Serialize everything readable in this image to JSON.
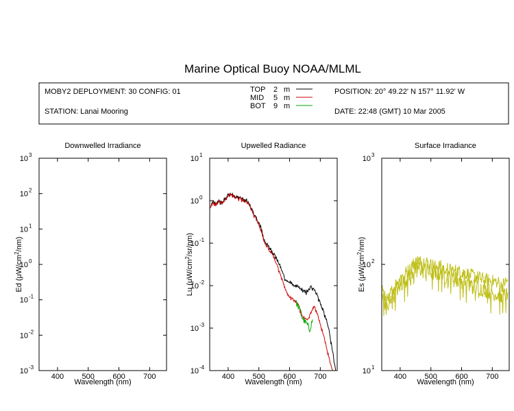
{
  "title": "Marine Optical Buoy NOAA/MLML",
  "info": {
    "deployment": "MOBY2 DEPLOYMENT: 30 CONFIG: 01",
    "station": "STATION: Lanai Mooring",
    "position": "POSITION: 20° 49.22' N   157° 11.92' W",
    "date": "DATE: 22:48 (GMT) 10 Mar 2005"
  },
  "legend": [
    {
      "label": "TOP",
      "depth": "2",
      "unit": "m",
      "color": "#000000"
    },
    {
      "label": "MID",
      "depth": "5",
      "unit": "m",
      "color": "#cc0000"
    },
    {
      "label": "BOT",
      "depth": "9",
      "unit": "m",
      "color": "#00aa00"
    }
  ],
  "chart_data": [
    {
      "type": "line",
      "title": "Downwelled Irradiance",
      "xlabel": "Wavelength (nm)",
      "ylabel_prefix": "Ed  (",
      "ylabel_suffix": ")",
      "unit": {
        "mu": "μ",
        "a": "W/cm",
        "sup": "2",
        "b": "/nm"
      },
      "xlim": [
        340,
        755
      ],
      "ylim": [
        0.001,
        1000
      ],
      "yscale": "log",
      "x_ticks": [
        400,
        500,
        600,
        700
      ],
      "y_ticks": [
        {
          "value": 0.001,
          "base": "10",
          "exp": "-3"
        },
        {
          "value": 0.01,
          "base": "10",
          "exp": "-2"
        },
        {
          "value": 0.1,
          "base": "10",
          "exp": "-1"
        },
        {
          "value": 1,
          "base": "10",
          "exp": "0"
        },
        {
          "value": 10,
          "base": "10",
          "exp": "1"
        },
        {
          "value": 100,
          "base": "10",
          "exp": "2"
        },
        {
          "value": 1000,
          "base": "10",
          "exp": "3"
        }
      ],
      "series": []
    },
    {
      "type": "line",
      "title": "Upwelled Radiance",
      "xlabel": "Wavelength (nm)",
      "ylabel_prefix": "Lu  (",
      "ylabel_suffix": ")",
      "unit": {
        "mu": "μ",
        "a": "W/cm",
        "sup": "2",
        "b": "/sr/nm"
      },
      "xlim": [
        340,
        755
      ],
      "ylim": [
        0.0001,
        10
      ],
      "yscale": "log",
      "x_ticks": [
        400,
        500,
        600,
        700
      ],
      "y_ticks": [
        {
          "value": 0.0001,
          "base": "10",
          "exp": "-4"
        },
        {
          "value": 0.001,
          "base": "10",
          "exp": "-3"
        },
        {
          "value": 0.01,
          "base": "10",
          "exp": "-2"
        },
        {
          "value": 0.1,
          "base": "10",
          "exp": "-1"
        },
        {
          "value": 1,
          "base": "10",
          "exp": "0"
        },
        {
          "value": 10,
          "base": "10",
          "exp": "1"
        }
      ],
      "series": [
        {
          "color": "#000000",
          "noise": 0.08,
          "x": [
            342,
            350,
            360,
            370,
            380,
            390,
            400,
            410,
            420,
            430,
            440,
            450,
            460,
            470,
            480,
            490,
            500,
            510,
            515,
            520,
            530,
            540,
            550,
            560,
            570,
            580,
            590,
            600,
            610,
            620,
            630,
            640,
            650,
            660,
            670,
            680,
            690,
            700,
            710,
            720,
            730,
            740,
            745,
            750
          ],
          "y": [
            0.7,
            0.95,
            0.85,
            1.0,
            0.9,
            1.1,
            1.4,
            1.45,
            1.3,
            1.2,
            1.2,
            1.05,
            1.0,
            0.8,
            0.55,
            0.4,
            0.3,
            0.2,
            0.13,
            0.11,
            0.085,
            0.07,
            0.055,
            0.04,
            0.028,
            0.018,
            0.013,
            0.012,
            0.011,
            0.01,
            0.009,
            0.008,
            0.007,
            0.0075,
            0.0095,
            0.0085,
            0.006,
            0.004,
            0.0025,
            0.0015,
            0.0008,
            0.0003,
            0.00015,
            0.0001
          ]
        },
        {
          "color": "#cc0000",
          "noise": 0.06,
          "x": [
            342,
            350,
            360,
            370,
            380,
            390,
            400,
            410,
            420,
            430,
            440,
            450,
            460,
            470,
            480,
            490,
            500,
            510,
            515,
            520,
            530,
            540,
            550,
            560,
            570,
            580,
            590,
            600,
            610,
            620,
            630,
            640,
            650,
            660,
            670,
            680,
            690,
            700,
            710,
            720,
            730,
            740,
            745
          ],
          "y": [
            0.65,
            0.9,
            0.8,
            0.95,
            0.88,
            1.05,
            1.35,
            1.4,
            1.28,
            1.18,
            1.15,
            1.0,
            0.95,
            0.78,
            0.52,
            0.38,
            0.28,
            0.17,
            0.12,
            0.1,
            0.075,
            0.06,
            0.045,
            0.03,
            0.019,
            0.011,
            0.007,
            0.0055,
            0.0048,
            0.0042,
            0.0033,
            0.0021,
            0.0017,
            0.0016,
            0.0024,
            0.0033,
            0.0022,
            0.0012,
            0.0007,
            0.00035,
            0.00018,
            0.0001,
            0.0001
          ]
        },
        {
          "color": "#00aa00",
          "noise": 0.15,
          "x": [
            620,
            625,
            630,
            635,
            640,
            645,
            650,
            655,
            660,
            665,
            670,
            675
          ],
          "y": [
            0.0042,
            0.0035,
            0.003,
            0.0025,
            0.0018,
            0.0016,
            0.0014,
            0.0013,
            0.0011,
            0.0009,
            0.0012,
            0.0016
          ]
        }
      ]
    },
    {
      "type": "line",
      "title": "Surface Irradiance",
      "xlabel": "Wavelength (nm)",
      "ylabel_prefix": "Es  (",
      "ylabel_suffix": ")",
      "unit": {
        "mu": "μ",
        "a": "W/cm",
        "sup": "2",
        "b": "/nm"
      },
      "xlim": [
        340,
        755
      ],
      "ylim": [
        10,
        1000
      ],
      "yscale": "log",
      "x_ticks": [
        400,
        500,
        600,
        700
      ],
      "y_ticks": [
        {
          "value": 10,
          "base": "10",
          "exp": "1"
        },
        {
          "value": 100,
          "base": "10",
          "exp": "2"
        },
        {
          "value": 1000,
          "base": "10",
          "exp": "3"
        }
      ],
      "series": [
        {
          "color": "#bfbf1a",
          "noise": 0.12,
          "x": [
            342,
            350,
            360,
            370,
            380,
            390,
            400,
            410,
            420,
            430,
            440,
            450,
            460,
            470,
            480,
            490,
            500,
            520,
            540,
            560,
            580,
            600,
            620,
            640,
            660,
            680,
            700,
            720,
            730,
            740,
            750
          ],
          "y": [
            60,
            50,
            45,
            55,
            60,
            70,
            75,
            80,
            85,
            90,
            100,
            105,
            110,
            105,
            108,
            104,
            100,
            98,
            95,
            90,
            88,
            85,
            82,
            78,
            75,
            72,
            70,
            68,
            62,
            68,
            70
          ]
        },
        {
          "color": "#bfbf1a",
          "noise": 0.15,
          "x": [
            342,
            350,
            360,
            370,
            380,
            390,
            400,
            410,
            420,
            430,
            440,
            450,
            460,
            470,
            480,
            490,
            500,
            520,
            540,
            560,
            580,
            600,
            620,
            640,
            660,
            680,
            700,
            720,
            730,
            740,
            750
          ],
          "y": [
            48,
            42,
            38,
            46,
            52,
            58,
            63,
            68,
            72,
            76,
            85,
            88,
            92,
            88,
            90,
            87,
            84,
            82,
            79,
            75,
            73,
            70,
            67,
            63,
            60,
            57,
            54,
            52,
            47,
            52,
            54
          ]
        }
      ]
    }
  ]
}
